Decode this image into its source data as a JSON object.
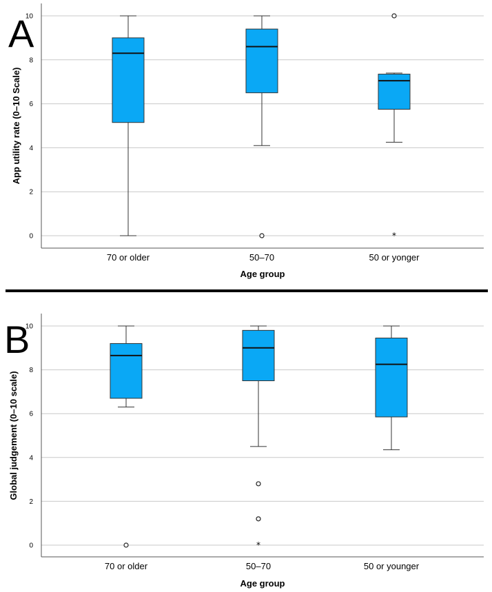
{
  "colors": {
    "box_fill": "#0aa8f5",
    "divider": "#000000"
  },
  "chart_data": [
    {
      "type": "box",
      "panel_label": "A",
      "xlabel": "Age group",
      "ylabel": "App utility rate (0–10 Scale)",
      "ylim": [
        0,
        10
      ],
      "yticks": [
        "0",
        "2",
        "4",
        "6",
        "8",
        "10"
      ],
      "grid": true,
      "categories": [
        "70 or older",
        "50–70",
        "50 or yonger"
      ],
      "boxes": [
        {
          "min": 0,
          "q1": 5.15,
          "median": 8.3,
          "q3": 9.0,
          "max": 10,
          "outliers": [],
          "extremes": []
        },
        {
          "min": 4.1,
          "q1": 6.5,
          "median": 8.6,
          "q3": 9.4,
          "max": 10,
          "outliers": [
            0
          ],
          "extremes": []
        },
        {
          "min": 4.25,
          "q1": 5.75,
          "median": 7.05,
          "q3": 7.35,
          "max": 7.4,
          "outliers": [
            10
          ],
          "extremes": [
            0
          ]
        }
      ]
    },
    {
      "type": "box",
      "panel_label": "B",
      "xlabel": "Age group",
      "ylabel": "Global judgement (0–10 scale)",
      "ylim": [
        0,
        10
      ],
      "yticks": [
        "0",
        "2",
        "4",
        "6",
        "8",
        "10"
      ],
      "grid": true,
      "categories": [
        "70 or older",
        "50–70",
        "50 or younger"
      ],
      "boxes": [
        {
          "min": 6.3,
          "q1": 6.7,
          "median": 8.65,
          "q3": 9.2,
          "max": 10,
          "outliers": [
            0
          ],
          "extremes": []
        },
        {
          "min": 4.5,
          "q1": 7.5,
          "median": 9.0,
          "q3": 9.8,
          "max": 10,
          "outliers": [
            2.8,
            1.2
          ],
          "extremes": [
            0
          ]
        },
        {
          "min": 4.35,
          "q1": 5.85,
          "median": 8.25,
          "q3": 9.45,
          "max": 10,
          "outliers": [],
          "extremes": []
        }
      ]
    }
  ]
}
